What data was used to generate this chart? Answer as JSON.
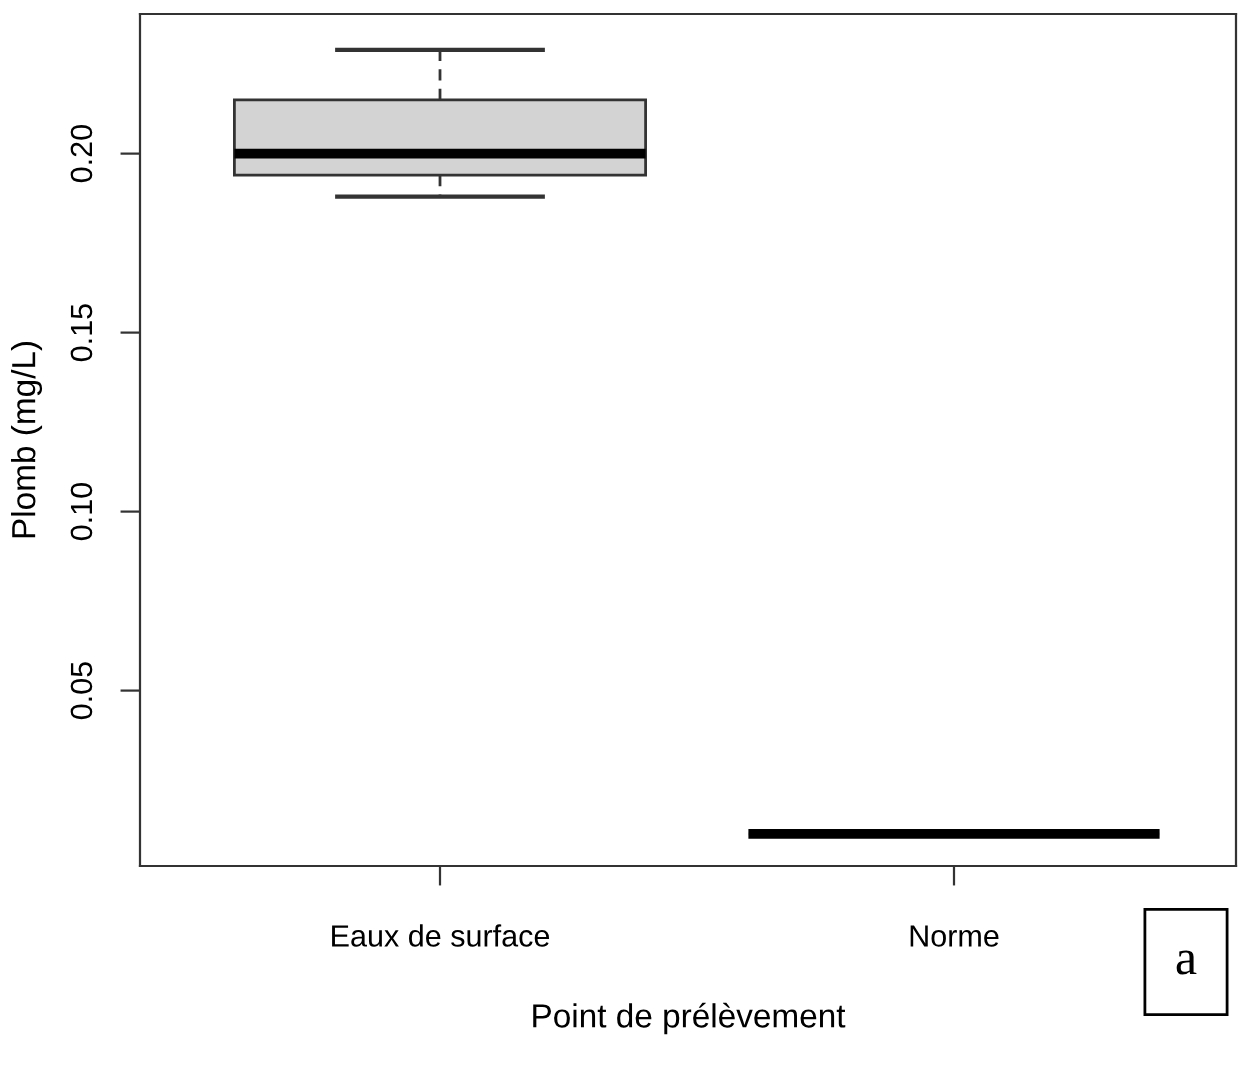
{
  "chart_data": {
    "type": "box",
    "xlabel": "Point de prélèvement",
    "ylabel": "Plomb (mg/L)",
    "categories": [
      "Eaux de surface",
      "Norme"
    ],
    "boxes": [
      {
        "low": 0.188,
        "q1": 0.194,
        "median": 0.2,
        "q3": 0.215,
        "high": 0.229
      },
      {
        "low": 0.01,
        "q1": 0.01,
        "median": 0.01,
        "q3": 0.01,
        "high": 0.01
      }
    ],
    "color": "#d3d3d3",
    "ylim": [
      0.001,
      0.239
    ],
    "yticks": [
      {
        "value": 0.05,
        "label": "0.05"
      },
      {
        "value": 0.1,
        "label": "0.10"
      },
      {
        "value": 0.15,
        "label": "0.15"
      },
      {
        "value": 0.2,
        "label": "0.20"
      }
    ],
    "grid": false,
    "annotations": [
      "a"
    ]
  }
}
